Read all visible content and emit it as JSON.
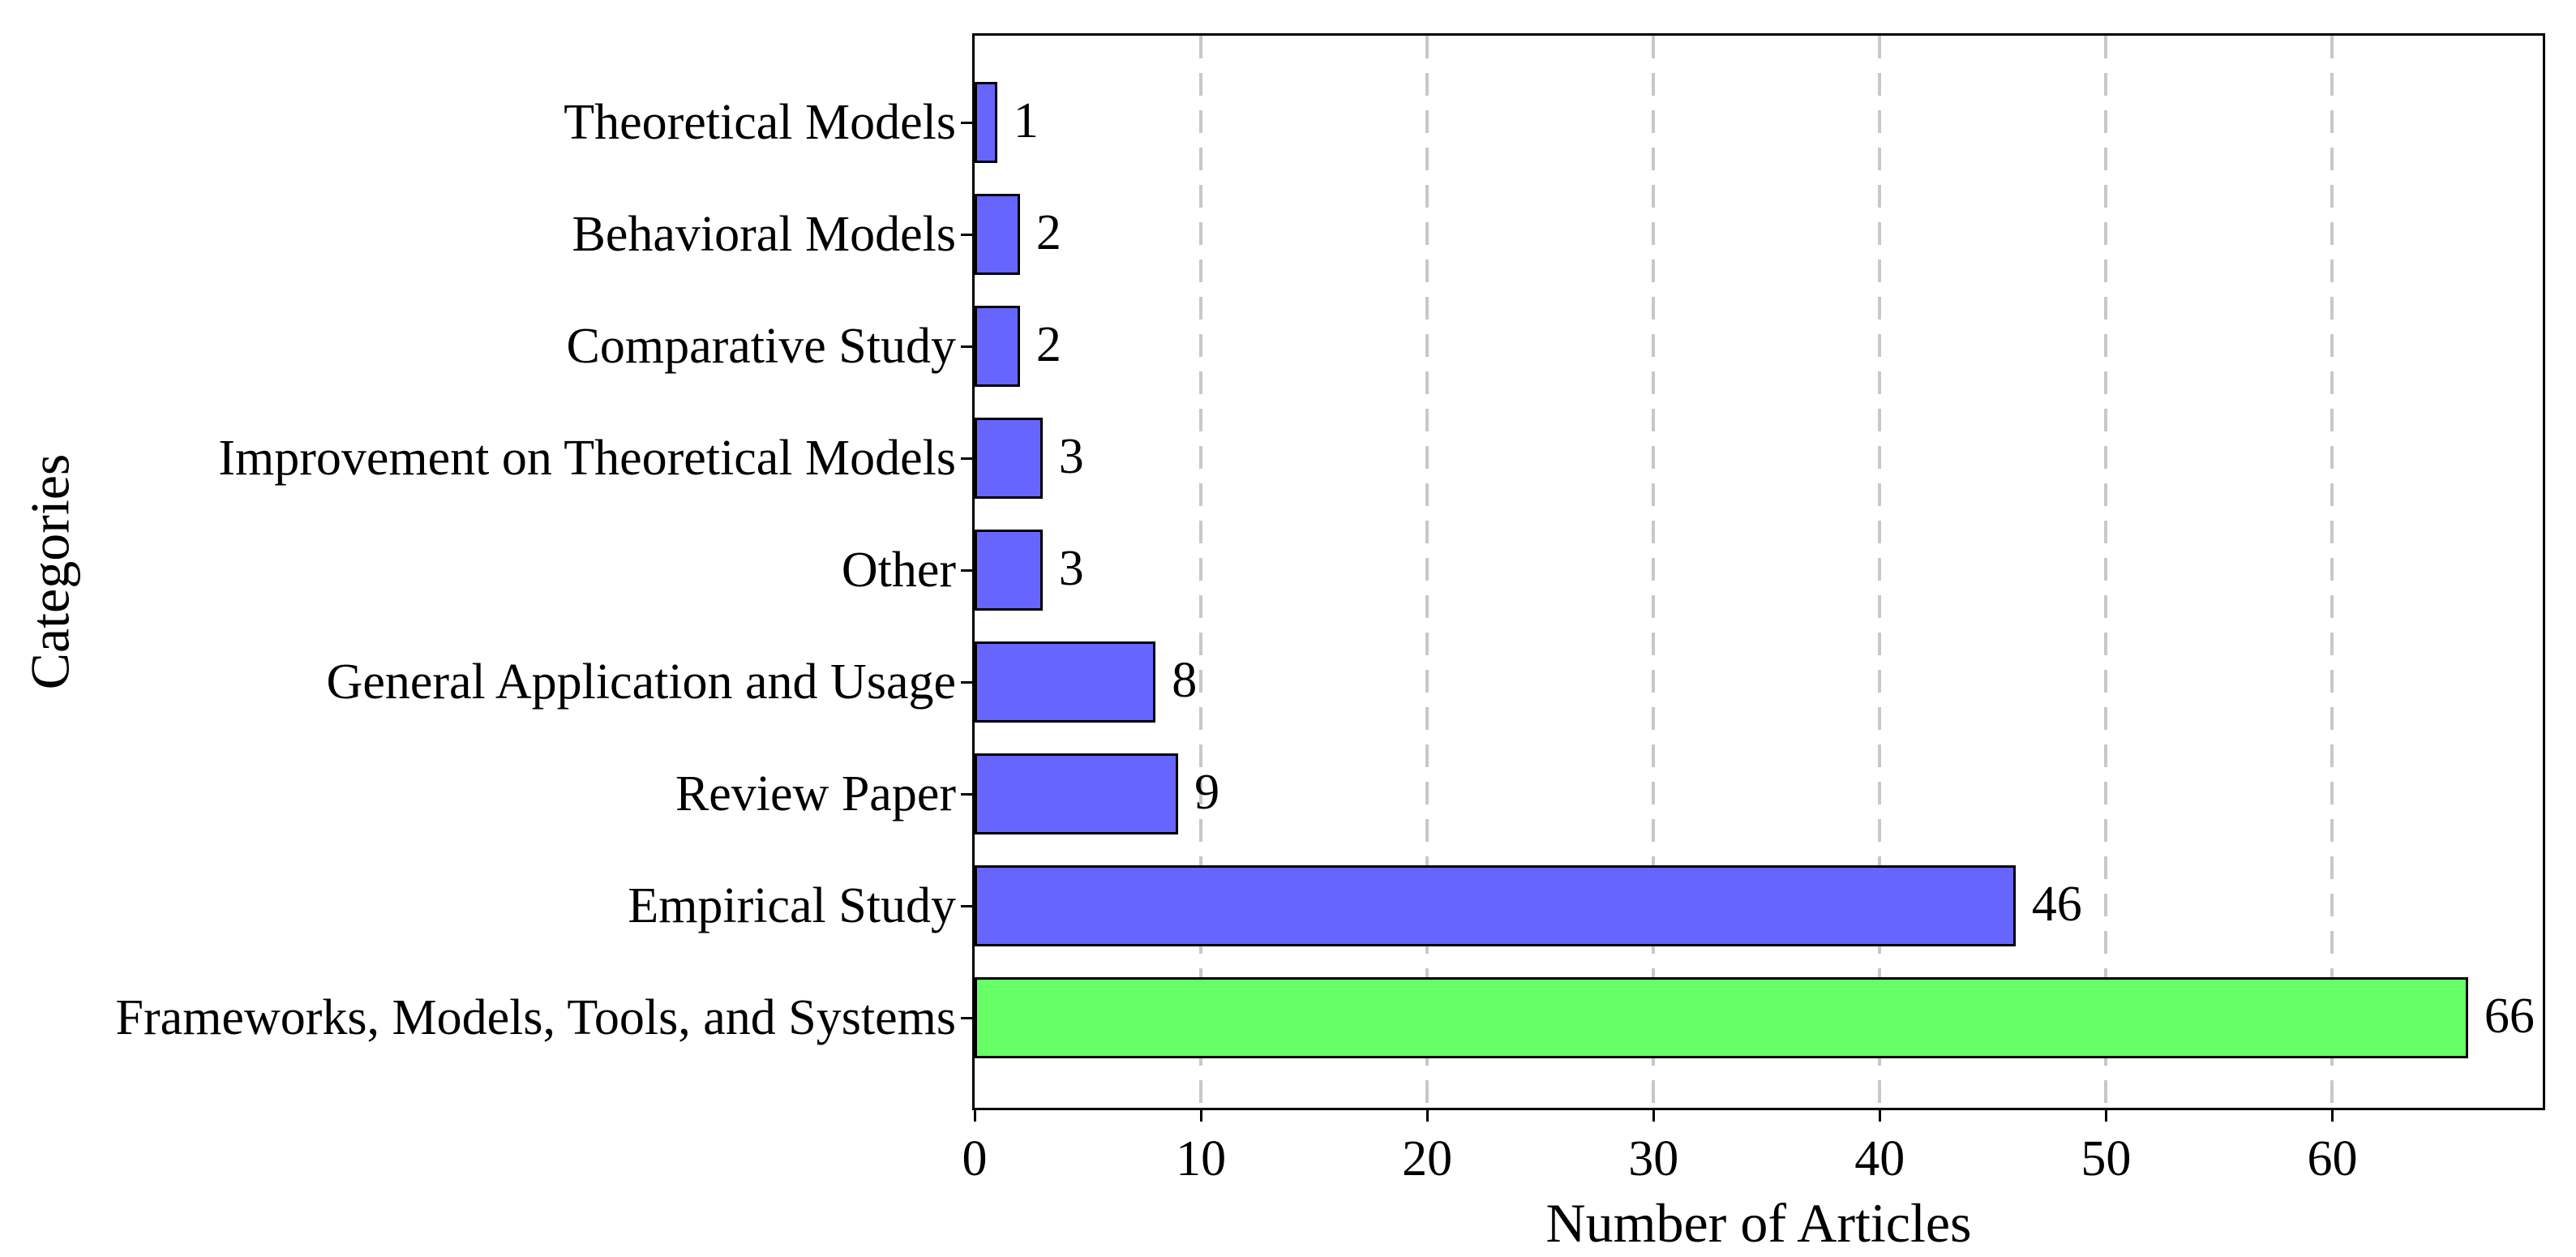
{
  "chart_data": {
    "type": "bar",
    "orientation": "horizontal",
    "title": "",
    "xlabel": "Number of Articles",
    "ylabel": "Categories",
    "categories": [
      "Theoretical Models",
      "Behavioral Models",
      "Comparative Study",
      "Improvement on Theoretical Models",
      "Other",
      "General Application and Usage",
      "Review Paper",
      "Empirical Study",
      "Frameworks, Models, Tools, and Systems"
    ],
    "values": [
      1,
      2,
      2,
      3,
      3,
      8,
      9,
      46,
      66
    ],
    "value_labels": [
      "1",
      "2",
      "2",
      "3",
      "3",
      "8",
      "9",
      "46",
      "66"
    ],
    "bar_colors": [
      "#6666ff",
      "#6666ff",
      "#6666ff",
      "#6666ff",
      "#6666ff",
      "#6666ff",
      "#6666ff",
      "#6666ff",
      "#66ff66"
    ],
    "bar_edge_color": "#000000",
    "xlim": [
      0,
      69.3
    ],
    "xticks": [
      0,
      10,
      20,
      30,
      40,
      50,
      60
    ],
    "grid": {
      "axis": "x",
      "style": "dashed",
      "color": "#c8c8c8",
      "ticks": [
        10,
        20,
        30,
        40,
        50,
        60
      ]
    },
    "legend": "none",
    "background": "#ffffff",
    "axes_edge_color": "#000000"
  }
}
